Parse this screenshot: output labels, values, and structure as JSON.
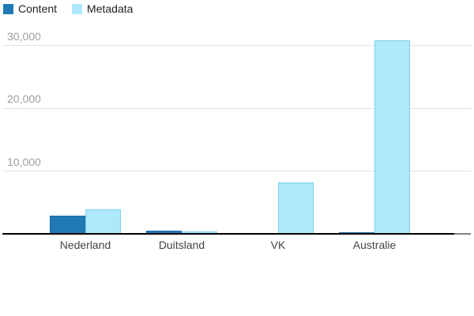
{
  "chart_data": {
    "type": "bar",
    "title": "",
    "xlabel": "",
    "ylabel": "",
    "categories": [
      "Nederland",
      "Duitsland",
      "VK",
      "Australie"
    ],
    "series": [
      {
        "name": "Content",
        "color": "#2079B4",
        "border_color": "#1B6AA5",
        "values": [
          2900,
          500,
          150,
          300
        ]
      },
      {
        "name": "Metadata",
        "color": "#ADE8FB",
        "border_color": "#7BCFEF",
        "values": [
          3900,
          350,
          8200,
          30800
        ]
      }
    ],
    "ylim": [
      0,
      30000
    ],
    "yticks": [
      {
        "value": 10000,
        "label": "10,000"
      },
      {
        "value": 20000,
        "label": "20,000"
      },
      {
        "value": 30000,
        "label": "30,000"
      }
    ],
    "grid": true,
    "legend_position": "top-left"
  },
  "legend": {
    "items": [
      {
        "label": "Content",
        "color": "#2079B4"
      },
      {
        "label": "Metadata",
        "color": "#ADE8FB"
      }
    ]
  },
  "colors": {
    "background": "#FFFFFF",
    "gridline": "#E2E2E2",
    "baseline": "#000000",
    "baseline_extension": "#7F7F7F",
    "ytick_text": "#9E9E9E",
    "xtick_text": "#444444",
    "legend_text": "#222222"
  }
}
